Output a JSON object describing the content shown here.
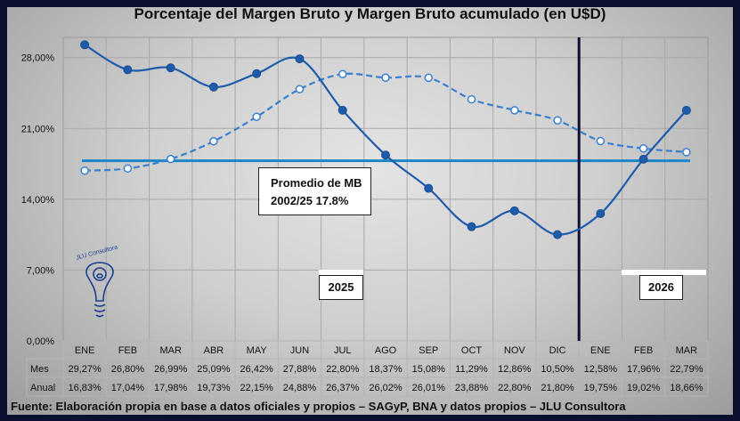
{
  "chart_data": {
    "type": "line",
    "title": "Porcentaje del Margen Bruto y Margen Bruto acumulado (en U$D)",
    "categories": [
      "ENE",
      "FEB",
      "MAR",
      "ABR",
      "MAY",
      "JUN",
      "JUL",
      "AGO",
      "SEP",
      "OCT",
      "NOV",
      "DIC",
      "ENE",
      "FEB",
      "MAR"
    ],
    "series": [
      {
        "name": "Mes",
        "values": [
          29.27,
          26.8,
          26.99,
          25.09,
          26.42,
          27.88,
          22.8,
          18.37,
          15.08,
          11.29,
          12.86,
          10.5,
          12.58,
          17.96,
          22.79
        ],
        "labels": [
          "29,27%",
          "26,80%",
          "26,99%",
          "25,09%",
          "26,42%",
          "27,88%",
          "22,80%",
          "18,37%",
          "15,08%",
          "11,29%",
          "12,86%",
          "10,50%",
          "12,58%",
          "17,96%",
          "22,79%"
        ],
        "color": "#1f5bab",
        "style": "solid"
      },
      {
        "name": "Anual",
        "values": [
          16.83,
          17.04,
          17.98,
          19.73,
          22.15,
          24.88,
          26.37,
          26.02,
          26.01,
          23.88,
          22.8,
          21.8,
          19.75,
          19.02,
          18.66
        ],
        "labels": [
          "16,83%",
          "17,04%",
          "17,98%",
          "19,73%",
          "22,15%",
          "24,88%",
          "26,37%",
          "26,02%",
          "26,01%",
          "23,88%",
          "22,80%",
          "21,80%",
          "19,75%",
          "19,02%",
          "18,66%"
        ],
        "color": "#3a7fd0",
        "style": "dashed"
      }
    ],
    "average": {
      "value": 17.8,
      "color": "#1e86c6",
      "label_line1": "Promedio de MB",
      "label_line2": "2002/25 17.8%"
    },
    "ylim": [
      0,
      30
    ],
    "yticks": [
      0,
      7,
      14,
      21,
      28
    ],
    "ytick_labels": [
      "0,00%",
      "7,00%",
      "14,00%",
      "21,00%",
      "28,00%"
    ],
    "year_labels": [
      "2025",
      "2026"
    ],
    "year_divider_after_index": 11,
    "grid": true,
    "legend": "table-bottom"
  },
  "footer": "Fuente: Elaboración propia en base a datos oficiales y propios – SAGyP, BNA y datos propios – JLU Consultora",
  "logo_text": "JLU Consultora"
}
